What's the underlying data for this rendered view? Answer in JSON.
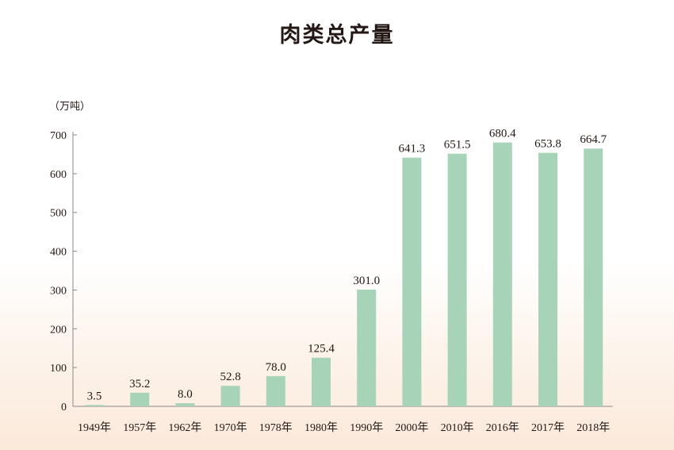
{
  "chart_data": {
    "type": "bar",
    "title": "肉类总产量",
    "unit_label": "（万吨）",
    "categories": [
      "1949年",
      "1957年",
      "1962年",
      "1970年",
      "1978年",
      "1980年",
      "1990年",
      "2000年",
      "2010年",
      "2016年",
      "2017年",
      "2018年"
    ],
    "values": [
      3.5,
      35.2,
      8.0,
      52.8,
      78.0,
      125.4,
      301.0,
      641.3,
      651.5,
      680.4,
      653.8,
      664.7
    ],
    "value_labels": [
      "3.5",
      "35.2",
      "8.0",
      "52.8",
      "78.0",
      "125.4",
      "301.0",
      "641.3",
      "651.5",
      "680.4",
      "653.8",
      "664.7"
    ],
    "yticks": [
      "0",
      "100",
      "200",
      "300",
      "400",
      "500",
      "600",
      "700"
    ],
    "ylim": [
      0,
      700
    ],
    "grid": false,
    "bar_color": "#a7d3b8"
  }
}
